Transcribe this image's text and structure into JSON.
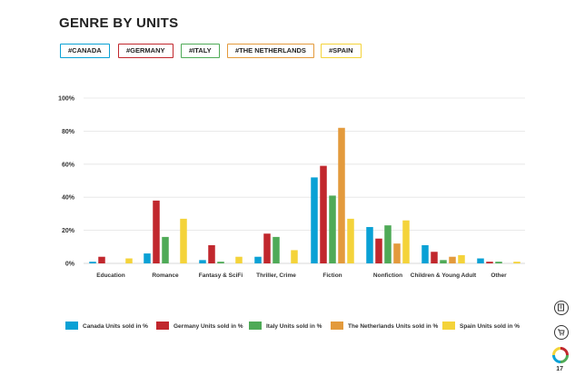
{
  "title": "GENRE BY UNITS",
  "tags": [
    {
      "label": "#CANADA",
      "color": "#0aa1d5"
    },
    {
      "label": "#GERMANY",
      "color": "#c1272d"
    },
    {
      "label": "#ITALY",
      "color": "#4faa57"
    },
    {
      "label": "#THE NETHERLANDS",
      "color": "#e39a3c"
    },
    {
      "label": "#SPAIN",
      "color": "#f4d33a"
    }
  ],
  "chart_data": {
    "type": "bar",
    "categories": [
      "Education",
      "Romance",
      "Fantasy & SciFi",
      "Thriller, Crime",
      "Fiction",
      "Nonfiction",
      "Children & Young Adult",
      "Other"
    ],
    "series": [
      {
        "name": "Canada Units sold in %",
        "color": "#0aa1d5",
        "values": [
          1,
          6,
          2,
          4,
          52,
          22,
          11,
          3
        ]
      },
      {
        "name": "Germany Units sold in %",
        "color": "#c1272d",
        "values": [
          4,
          38,
          11,
          18,
          59,
          15,
          7,
          1
        ]
      },
      {
        "name": "Italy Units sold in %",
        "color": "#4faa57",
        "values": [
          0,
          16,
          1,
          16,
          41,
          23,
          2,
          1
        ]
      },
      {
        "name": "The Netherlands Units sold in %",
        "color": "#e39a3c",
        "values": [
          0,
          0,
          0,
          0,
          82,
          12,
          4,
          0
        ]
      },
      {
        "name": "Spain Units sold in %",
        "color": "#f4d33a",
        "values": [
          3,
          27,
          4,
          8,
          27,
          26,
          5,
          1
        ]
      }
    ],
    "ylim": [
      0,
      100
    ],
    "yticks": [
      "0%",
      "20%",
      "40%",
      "60%",
      "80%",
      "100%"
    ],
    "ytick_values": [
      0,
      20,
      40,
      60,
      80,
      100
    ],
    "grid": true,
    "legend_position": "bottom"
  },
  "side_icons": [
    "book-icon",
    "cart-icon",
    "ring-logo-icon"
  ],
  "page_number": "17"
}
